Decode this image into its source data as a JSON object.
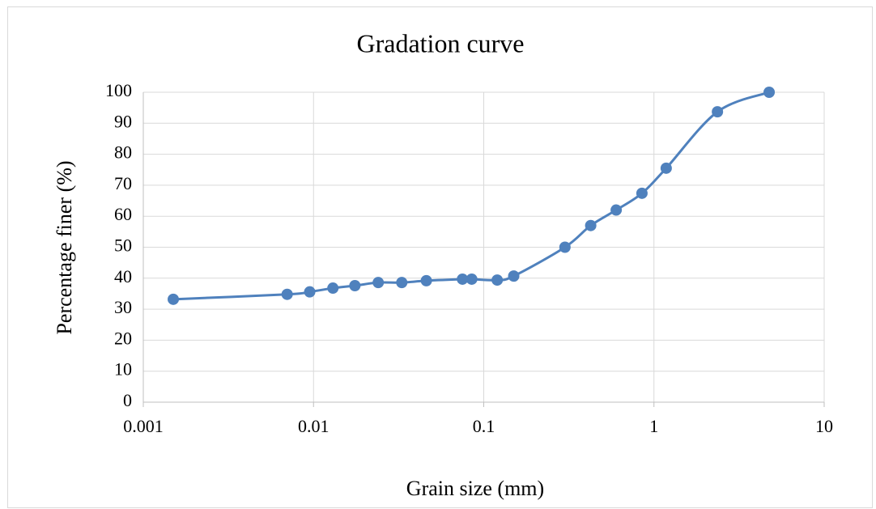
{
  "chart_data": {
    "type": "line",
    "title": "Gradation curve",
    "x_label": "Grain size (mm)",
    "y_label": "Percentage finer (%)",
    "x_scale": "log",
    "grid": true,
    "x": [
      0.0015,
      0.007,
      0.0095,
      0.013,
      0.0175,
      0.024,
      0.033,
      0.046,
      0.075,
      0.085,
      0.12,
      0.15,
      0.3,
      0.425,
      0.6,
      0.85,
      1.18,
      2.36,
      4.75
    ],
    "series": [
      {
        "color": "#4f81bd",
        "values": [
          33.2,
          34.8,
          35.6,
          36.8,
          37.6,
          38.6,
          38.6,
          39.2,
          39.7,
          39.7,
          39.4,
          40.7,
          50,
          57,
          62,
          67.4,
          75.5,
          93.7,
          100
        ]
      }
    ],
    "xlim": [
      0.001,
      10
    ],
    "xticks": [
      0.001,
      0.01,
      0.1,
      1,
      10
    ],
    "ylim": [
      0,
      100
    ],
    "yticks": [
      0,
      10,
      20,
      30,
      40,
      50,
      60,
      70,
      80,
      90,
      100
    ]
  }
}
